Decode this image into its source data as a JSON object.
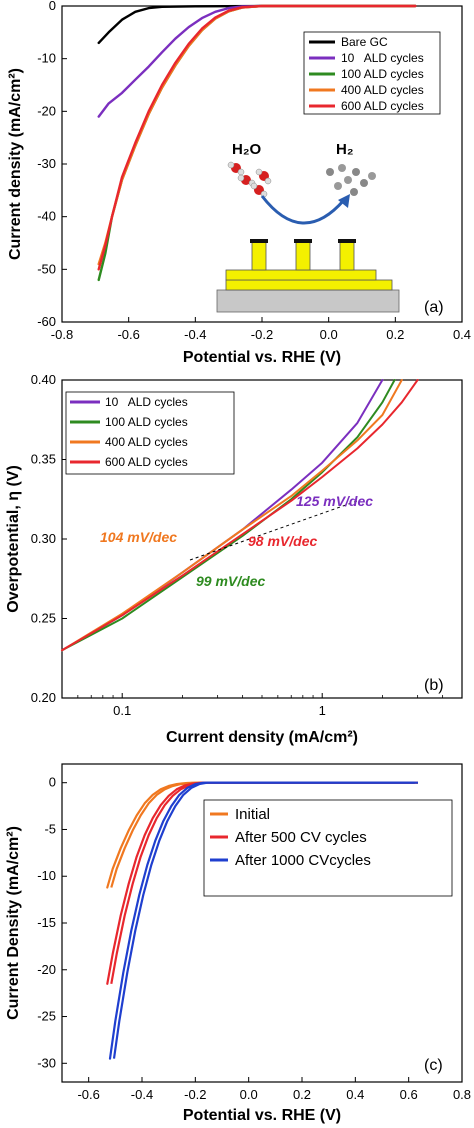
{
  "chart_data": [
    {
      "type": "line",
      "panel_label": "(a)",
      "xlabel": "Potential vs. RHE (V)",
      "ylabel": "Current density (mA/cm²)",
      "xlim": [
        -0.8,
        0.4
      ],
      "ylim": [
        -60,
        0
      ],
      "xticks": [
        "-0.8",
        "-0.6",
        "-0.4",
        "-0.2",
        "0.0",
        "0.2",
        "0.4"
      ],
      "yticks": [
        "0",
        "-10",
        "-20",
        "-30",
        "-40",
        "-50",
        "-60"
      ],
      "legend_position": "top-right",
      "series": [
        {
          "name": "Bare GC",
          "color": "#000000",
          "x": [
            -0.69,
            -0.66,
            -0.62,
            -0.58,
            -0.54,
            -0.5,
            -0.4,
            -0.2,
            0.0,
            0.26
          ],
          "y": [
            -7.0,
            -5.0,
            -2.6,
            -1.1,
            -0.4,
            -0.15,
            -0.05,
            0,
            0,
            0
          ]
        },
        {
          "name": "10   ALD cycles",
          "color": "#7b2fbf",
          "x": [
            -0.69,
            -0.66,
            -0.62,
            -0.58,
            -0.54,
            -0.5,
            -0.46,
            -0.42,
            -0.38,
            -0.34,
            -0.3,
            -0.26,
            -0.2,
            0.0,
            0.26
          ],
          "y": [
            -21,
            -18.5,
            -16.5,
            -14,
            -11.5,
            -8.8,
            -6.2,
            -4.0,
            -2.3,
            -1.1,
            -0.4,
            -0.1,
            0,
            0,
            0
          ]
        },
        {
          "name": "100 ALD cycles",
          "color": "#2e8b20",
          "x": [
            -0.69,
            -0.67,
            -0.65,
            -0.62,
            -0.58,
            -0.54,
            -0.5,
            -0.46,
            -0.42,
            -0.38,
            -0.34,
            -0.3,
            -0.26,
            -0.2,
            0.0,
            0.26
          ],
          "y": [
            -52,
            -47,
            -40,
            -33,
            -26.5,
            -20.5,
            -15.5,
            -11.3,
            -7.6,
            -4.6,
            -2.4,
            -1.0,
            -0.3,
            0,
            0,
            0
          ]
        },
        {
          "name": "400 ALD cycles",
          "color": "#f07820",
          "x": [
            -0.69,
            -0.67,
            -0.65,
            -0.62,
            -0.58,
            -0.54,
            -0.5,
            -0.46,
            -0.42,
            -0.38,
            -0.34,
            -0.3,
            -0.26,
            -0.2,
            0.0,
            0.26
          ],
          "y": [
            -49,
            -45,
            -40,
            -33,
            -26.5,
            -20.5,
            -15.5,
            -11.3,
            -7.6,
            -4.6,
            -2.4,
            -1.0,
            -0.3,
            0,
            0,
            0
          ]
        },
        {
          "name": "600 ALD cycles",
          "color": "#e8272e",
          "x": [
            -0.69,
            -0.67,
            -0.65,
            -0.62,
            -0.58,
            -0.54,
            -0.5,
            -0.46,
            -0.42,
            -0.38,
            -0.34,
            -0.3,
            -0.26,
            -0.2,
            0.0,
            0.26
          ],
          "y": [
            -50,
            -45.5,
            -40,
            -32.5,
            -26,
            -20,
            -15,
            -10.8,
            -7.2,
            -4.3,
            -2.2,
            -0.9,
            -0.25,
            0,
            0,
            0
          ]
        }
      ],
      "inset": {
        "reactant": "H₂O",
        "product": "H₂"
      }
    },
    {
      "type": "line",
      "panel_label": "(b)",
      "xlabel": "Current density (mA/cm²)",
      "ylabel": "Overpotential, η (V)",
      "xscale": "log",
      "xlim": [
        0.05,
        5
      ],
      "ylim": [
        0.2,
        0.4
      ],
      "xticks": [
        "0.1",
        "1"
      ],
      "yticks": [
        "0.20",
        "0.25",
        "0.30",
        "0.35",
        "0.40"
      ],
      "legend_position": "top-left",
      "series": [
        {
          "name": "10   ALD cycles",
          "color": "#7b2fbf",
          "x": [
            0.05,
            0.1,
            0.2,
            0.4,
            0.7,
            1.0,
            1.5,
            2.0
          ],
          "y": [
            0.23,
            0.252,
            0.279,
            0.306,
            0.331,
            0.348,
            0.373,
            0.4
          ]
        },
        {
          "name": "100 ALD cycles",
          "color": "#2e8b20",
          "x": [
            0.05,
            0.1,
            0.2,
            0.4,
            0.7,
            1.0,
            1.5,
            2.0,
            2.3
          ],
          "y": [
            0.23,
            0.25,
            0.276,
            0.302,
            0.325,
            0.342,
            0.364,
            0.386,
            0.4
          ]
        },
        {
          "name": "400 ALD cycles",
          "color": "#f07820",
          "x": [
            0.05,
            0.1,
            0.2,
            0.4,
            0.7,
            1.0,
            1.5,
            2.0,
            2.5
          ],
          "y": [
            0.23,
            0.253,
            0.279,
            0.306,
            0.327,
            0.343,
            0.362,
            0.378,
            0.4
          ]
        },
        {
          "name": "600 ALD cycles",
          "color": "#e8272e",
          "x": [
            0.05,
            0.1,
            0.2,
            0.4,
            0.7,
            1.0,
            1.5,
            2.0,
            2.5,
            3.0
          ],
          "y": [
            0.23,
            0.252,
            0.277,
            0.303,
            0.324,
            0.339,
            0.357,
            0.372,
            0.386,
            0.4
          ]
        }
      ],
      "annotations": [
        {
          "text": "104 mV/dec",
          "color": "#f07820"
        },
        {
          "text": "125 mV/dec",
          "color": "#7b2fbf"
        },
        {
          "text": "98 mV/dec",
          "color": "#e8272e"
        },
        {
          "text": "99 mV/dec",
          "color": "#2e8b20"
        }
      ]
    },
    {
      "type": "line",
      "panel_label": "(c)",
      "xlabel": "Potential vs. RHE (V)",
      "ylabel": "Current Density (mA/cm²)",
      "xlim": [
        -0.7,
        0.8
      ],
      "ylim": [
        -32,
        2
      ],
      "xticks": [
        "-0.6",
        "-0.4",
        "-0.2",
        "0.0",
        "0.2",
        "0.4",
        "0.6",
        "0.8"
      ],
      "yticks": [
        "0",
        "-5",
        "-10",
        "-15",
        "-20",
        "-25",
        "-30"
      ],
      "legend_position": "top-right",
      "series": [
        {
          "name": "Initial",
          "color": "#f07820",
          "x": [
            -0.53,
            -0.51,
            -0.48,
            -0.45,
            -0.42,
            -0.39,
            -0.36,
            -0.33,
            -0.3,
            -0.27,
            -0.25,
            -0.23,
            -0.2,
            0.0,
            0.62
          ],
          "y": [
            -11.2,
            -9.2,
            -7.0,
            -5.1,
            -3.5,
            -2.2,
            -1.3,
            -0.7,
            -0.35,
            -0.15,
            -0.08,
            -0.03,
            0,
            0,
            0
          ]
        },
        {
          "name": "After 500 CV cycles",
          "color": "#e8272e",
          "x": [
            -0.53,
            -0.51,
            -0.48,
            -0.45,
            -0.42,
            -0.39,
            -0.36,
            -0.33,
            -0.3,
            -0.27,
            -0.24,
            -0.21,
            -0.18,
            0.0,
            0.62
          ],
          "y": [
            -21.5,
            -18.3,
            -14.2,
            -10.8,
            -7.9,
            -5.6,
            -3.8,
            -2.4,
            -1.4,
            -0.7,
            -0.3,
            -0.1,
            0,
            0,
            0
          ]
        },
        {
          "name": "After 1000 CVcycles",
          "color": "#1f3fcf",
          "x": [
            -0.52,
            -0.5,
            -0.47,
            -0.44,
            -0.41,
            -0.38,
            -0.35,
            -0.32,
            -0.29,
            -0.26,
            -0.23,
            -0.2,
            -0.17,
            0.0,
            0.62
          ],
          "y": [
            -29.5,
            -25.5,
            -20.3,
            -15.8,
            -12.0,
            -8.8,
            -6.2,
            -4.1,
            -2.5,
            -1.3,
            -0.55,
            -0.15,
            0,
            0,
            0
          ]
        }
      ]
    }
  ]
}
